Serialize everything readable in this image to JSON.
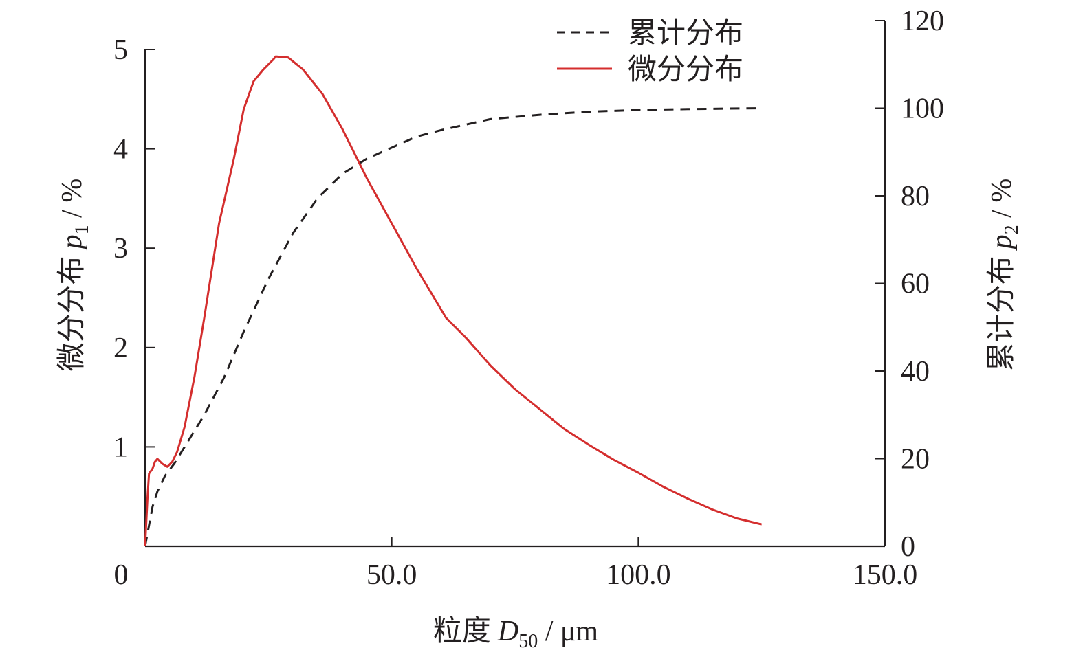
{
  "chart_data": {
    "type": "line",
    "x_axis": {
      "label_main": "粒度",
      "label_var": "D",
      "label_sub": "50",
      "label_unit": " / μm",
      "range": [
        0,
        150
      ],
      "ticks": [
        0,
        50,
        100,
        150
      ],
      "tick_labels": [
        "0",
        "50.0",
        "100.0",
        "150.0"
      ]
    },
    "y_left": {
      "label_main": "微分分布",
      "label_var": "p",
      "label_sub": "1",
      "label_unit": " / %",
      "range": [
        0,
        5
      ],
      "ticks": [
        1,
        2,
        3,
        4,
        5
      ],
      "tick_labels": [
        "1",
        "2",
        "3",
        "4",
        "5"
      ]
    },
    "y_right": {
      "label_main": "累计分布",
      "label_var": "p",
      "label_sub": "2",
      "label_unit": " / %",
      "range": [
        0,
        120
      ],
      "ticks": [
        0,
        20,
        40,
        60,
        80,
        100,
        120
      ],
      "tick_labels": [
        "0",
        "20",
        "40",
        "60",
        "80",
        "100",
        "120"
      ]
    },
    "legend": {
      "placement": "top-right"
    },
    "grid": false,
    "series": [
      {
        "name": "累计分布",
        "axis": "right",
        "color": "#231f20",
        "style": "dashed",
        "points": [
          [
            0,
            0
          ],
          [
            0.5,
            3
          ],
          [
            1,
            6
          ],
          [
            1.5,
            9
          ],
          [
            2.5,
            12.5
          ],
          [
            4,
            16
          ],
          [
            6,
            19
          ],
          [
            9,
            24.5
          ],
          [
            12,
            30
          ],
          [
            16,
            38.5
          ],
          [
            20,
            49
          ],
          [
            25,
            61
          ],
          [
            30,
            71.5
          ],
          [
            35,
            79.5
          ],
          [
            40,
            85
          ],
          [
            45,
            88.5
          ],
          [
            50,
            91
          ],
          [
            55,
            93.5
          ],
          [
            60,
            95
          ],
          [
            70,
            97.5
          ],
          [
            80,
            98.5
          ],
          [
            90,
            99.2
          ],
          [
            100,
            99.6
          ],
          [
            110,
            99.8
          ],
          [
            118,
            99.9
          ],
          [
            125,
            100
          ]
        ]
      },
      {
        "name": "微分分布",
        "axis": "left",
        "color": "#d42e2e",
        "style": "solid",
        "points": [
          [
            0,
            0
          ],
          [
            0.5,
            0.5
          ],
          [
            0.8,
            0.73
          ],
          [
            1.5,
            0.78
          ],
          [
            2,
            0.85
          ],
          [
            2.5,
            0.88
          ],
          [
            3.5,
            0.83
          ],
          [
            4.5,
            0.8
          ],
          [
            5.5,
            0.85
          ],
          [
            6.5,
            0.95
          ],
          [
            8,
            1.2
          ],
          [
            10,
            1.7
          ],
          [
            12,
            2.3
          ],
          [
            15,
            3.25
          ],
          [
            18,
            3.9
          ],
          [
            20,
            4.4
          ],
          [
            22,
            4.68
          ],
          [
            24,
            4.8
          ],
          [
            26,
            4.9
          ],
          [
            26.5,
            4.93
          ],
          [
            29,
            4.92
          ],
          [
            32,
            4.8
          ],
          [
            36,
            4.55
          ],
          [
            40,
            4.2
          ],
          [
            45,
            3.7
          ],
          [
            50,
            3.25
          ],
          [
            55,
            2.8
          ],
          [
            61,
            2.3
          ],
          [
            65,
            2.1
          ],
          [
            70,
            1.82
          ],
          [
            75,
            1.58
          ],
          [
            80,
            1.38
          ],
          [
            85,
            1.18
          ],
          [
            90,
            1.02
          ],
          [
            95,
            0.87
          ],
          [
            100,
            0.74
          ],
          [
            105,
            0.6
          ],
          [
            110,
            0.48
          ],
          [
            115,
            0.37
          ],
          [
            120,
            0.28
          ],
          [
            125,
            0.22
          ]
        ]
      }
    ]
  }
}
